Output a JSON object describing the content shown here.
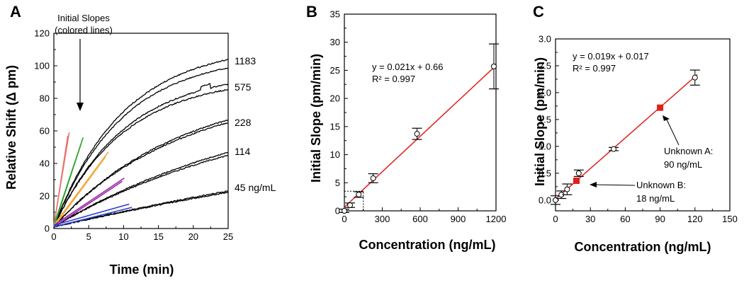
{
  "chart_data": [
    {
      "panel": "A",
      "type": "line",
      "xlabel": "Time (min)",
      "ylabel": "Relative Shift (Δ pm)",
      "xlim": [
        0,
        25
      ],
      "ylim": [
        0,
        120
      ],
      "x_ticks": [
        0,
        5,
        10,
        15,
        20,
        25
      ],
      "y_ticks": [
        0,
        20,
        40,
        60,
        80,
        100,
        120
      ],
      "annotation": "Initial Slopes\n(colored lines)",
      "curve_labels": [
        "1183",
        "575",
        "228",
        "114",
        "45 ng/mL"
      ],
      "groups": [
        {
          "label": "1183",
          "color": "#000000",
          "curves": [
            {
              "plateau": 112,
              "k": 0.1
            },
            {
              "plateau": 106,
              "k": 0.102
            }
          ]
        },
        {
          "label": "575",
          "color": "#000000",
          "curves": [
            {
              "plateau": 96,
              "k": 0.098
            },
            {
              "plateau": 92,
              "k": 0.1
            }
          ]
        },
        {
          "label": "228",
          "color": "#000000",
          "curves": [
            {
              "plateau": 88,
              "k": 0.055
            },
            {
              "plateau": 85,
              "k": 0.056
            }
          ]
        },
        {
          "label": "114",
          "color": "#000000",
          "curves": [
            {
              "plateau": 85,
              "k": 0.031
            },
            {
              "plateau": 80,
              "k": 0.032
            }
          ]
        },
        {
          "label": "45 ng/mL",
          "color": "#000000",
          "curves": [
            {
              "plateau": 100,
              "k": 0.01
            },
            {
              "plateau": 98,
              "k": 0.0098
            }
          ]
        }
      ],
      "initial_slope_lines": [
        {
          "color": "#e8736e",
          "segments": [
            [
              [
                0,
                2
              ],
              [
                2.2,
                59
              ]
            ],
            [
              [
                0,
                1
              ],
              [
                2.0,
                57
              ]
            ]
          ]
        },
        {
          "color": "#2ea32e",
          "segments": [
            [
              [
                0,
                2
              ],
              [
                4.2,
                56
              ]
            ],
            [
              [
                0,
                1
              ],
              [
                3.9,
                52
              ]
            ]
          ]
        },
        {
          "color": "#f4a93b",
          "segments": [
            [
              [
                0,
                2
              ],
              [
                7.8,
                47
              ]
            ],
            [
              [
                0,
                1
              ],
              [
                7.4,
                44
              ]
            ]
          ]
        },
        {
          "color": "#9a2aa6",
          "segments": [
            [
              [
                0,
                2
              ],
              [
                10.1,
                31
              ]
            ],
            [
              [
                0,
                1
              ],
              [
                9.8,
                29
              ]
            ]
          ]
        },
        {
          "color": "#2a3dcc",
          "segments": [
            [
              [
                0,
                2
              ],
              [
                10.8,
                15
              ]
            ],
            [
              [
                0,
                1
              ],
              [
                11.2,
                13
              ]
            ]
          ]
        }
      ]
    },
    {
      "panel": "B",
      "type": "scatter",
      "xlabel": "Concentration (ng/mL)",
      "ylabel": "Initial Slope (pm/min)",
      "xlim": [
        0,
        1200
      ],
      "ylim": [
        0,
        35
      ],
      "x_ticks": [
        0,
        300,
        600,
        900,
        1200
      ],
      "y_ticks": [
        0,
        5,
        10,
        15,
        20,
        25,
        30,
        35
      ],
      "equation": "y = 0.021x + 0.66",
      "r2": "R² = 0.997",
      "fit": {
        "slope": 0.021,
        "intercept": 0.66,
        "color": "#e0201a"
      },
      "points": [
        {
          "x": 0,
          "y": 0.0,
          "err": 0.3
        },
        {
          "x": 45,
          "y": 1.0,
          "err": 0.4
        },
        {
          "x": 114,
          "y": 2.9,
          "err": 0.5
        },
        {
          "x": 228,
          "y": 5.8,
          "err": 0.8
        },
        {
          "x": 575,
          "y": 13.7,
          "err": 1.0
        },
        {
          "x": 1183,
          "y": 25.7,
          "err": 4.0
        }
      ],
      "inset_box": {
        "x": [
          0,
          150
        ],
        "y": [
          0,
          3.5
        ]
      }
    },
    {
      "panel": "C",
      "type": "scatter",
      "xlabel": "Concentration (ng/mL)",
      "ylabel": "Initial Slope (pm/min)",
      "xlim": [
        0,
        150
      ],
      "ylim": [
        -0.2,
        3.0
      ],
      "x_ticks": [
        0,
        30,
        60,
        90,
        120,
        150
      ],
      "y_ticks": [
        0.0,
        0.5,
        1.0,
        1.5,
        2.0,
        2.5,
        3.0
      ],
      "equation": "y = 0.019x + 0.017",
      "r2": "R² = 0.997",
      "fit": {
        "slope": 0.019,
        "intercept": 0.017,
        "color": "#e0201a"
      },
      "points": [
        {
          "x": 0,
          "y": 0.0,
          "err": 0.08
        },
        {
          "x": 5,
          "y": 0.1,
          "err": 0.07
        },
        {
          "x": 10,
          "y": 0.2,
          "err": 0.1
        },
        {
          "x": 20,
          "y": 0.5,
          "err": 0.06
        },
        {
          "x": 50,
          "y": 0.95,
          "err": 0.03
        },
        {
          "x": 120,
          "y": 2.28,
          "err": 0.14
        }
      ],
      "unknowns": [
        {
          "label": "Unknown A:",
          "value": "90 ng/mL",
          "x": 90,
          "y": 1.72,
          "color": "#e0201a"
        },
        {
          "label": "Unknown B:",
          "value": "18 ng/mL",
          "x": 18,
          "y": 0.36,
          "color": "#e0201a"
        }
      ]
    }
  ]
}
